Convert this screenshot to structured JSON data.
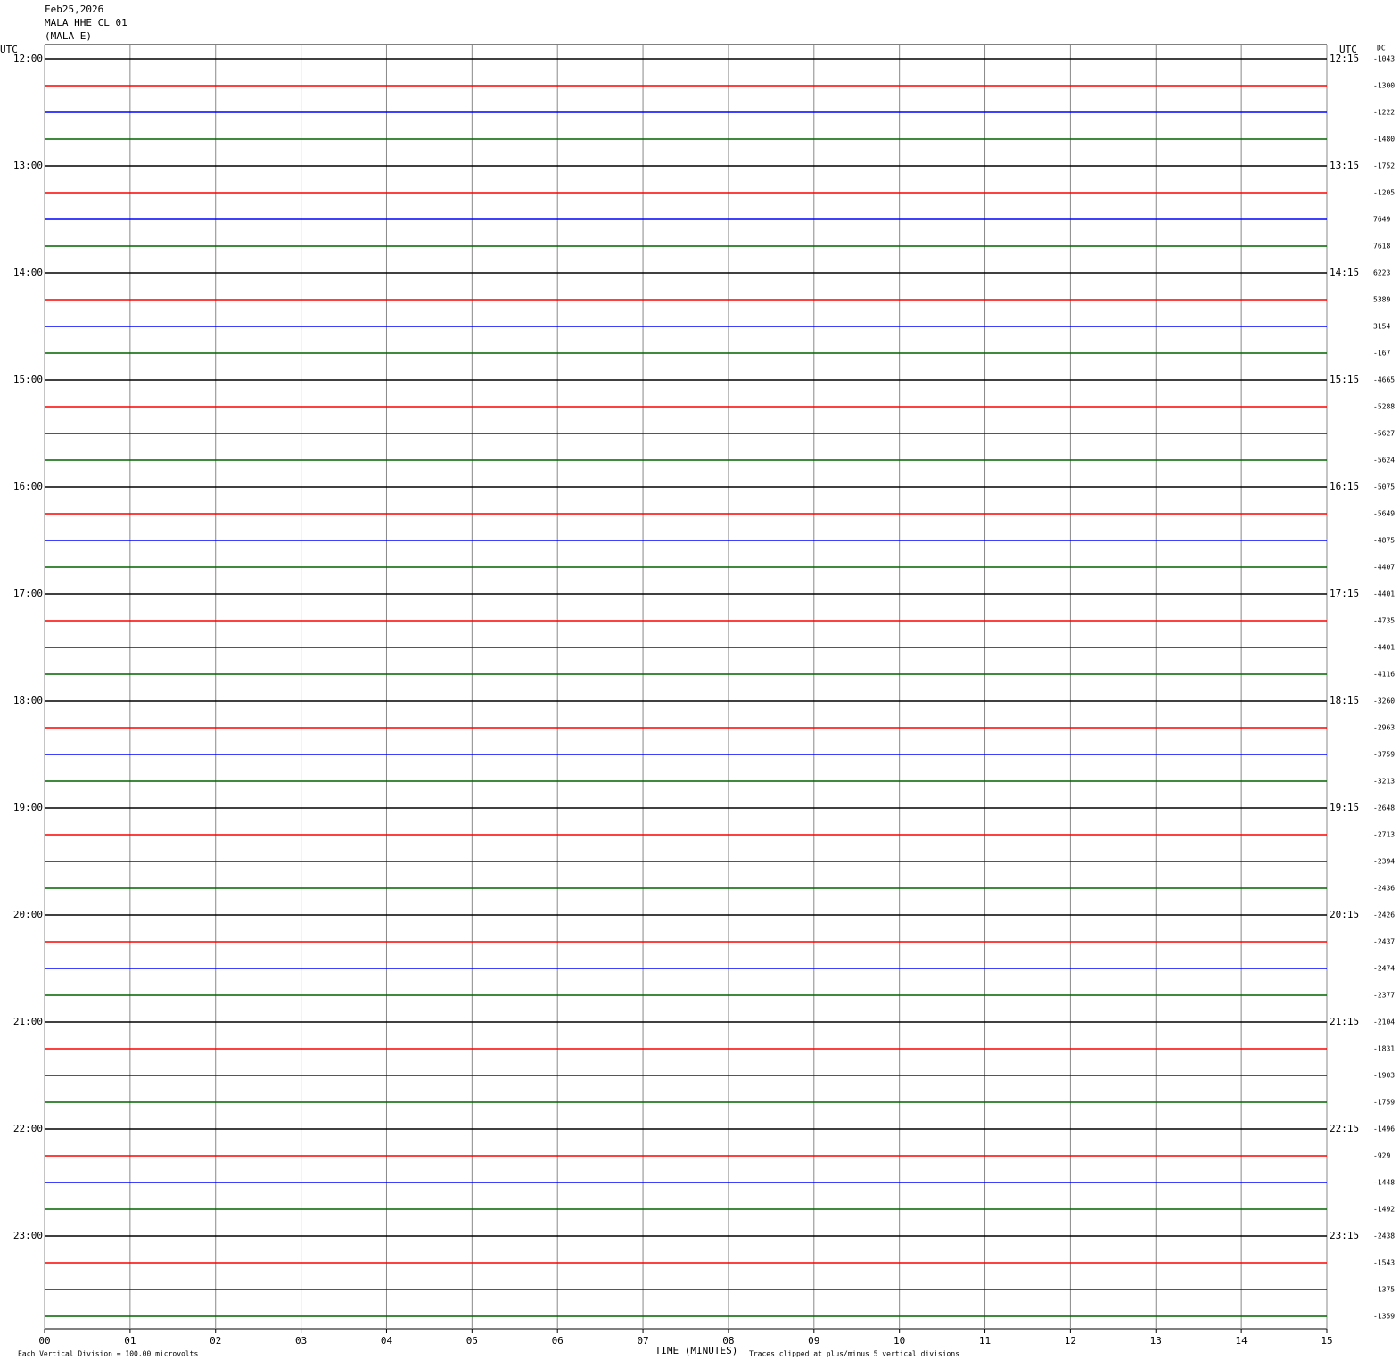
{
  "header": {
    "date": "Feb25,2026",
    "station": "MALA HHE CL 01",
    "location": "(MALA E)"
  },
  "chart_data": {
    "type": "helicorder",
    "left_axis_label": "UTC",
    "right_axis_label": "UTC",
    "dc_label": "DC",
    "left_times": [
      "12:00",
      "13:00",
      "14:00",
      "15:00",
      "16:00",
      "17:00",
      "18:00",
      "19:00",
      "20:00",
      "21:00",
      "22:00",
      "23:00"
    ],
    "right_times": [
      "12:15",
      "13:15",
      "14:15",
      "15:15",
      "16:15",
      "17:15",
      "18:15",
      "19:15",
      "20:15",
      "21:15",
      "22:15",
      "23:15"
    ],
    "dc_offsets": [
      -1043,
      -1300,
      -1222,
      -1480,
      -1752,
      -1205,
      7649,
      7618,
      6223,
      5389,
      3154,
      -167,
      -4665,
      -5288,
      -5627,
      -5624,
      -5075,
      -5649,
      -4875,
      -4407,
      -4401,
      -4735,
      -4401,
      -4116,
      -3260,
      -2963,
      -3759,
      -3213,
      -2648,
      -2713,
      -2394,
      -2436,
      -2426,
      -2437,
      -2474,
      -2377,
      -2104,
      -1831,
      -1903,
      -1759,
      -1496,
      -929,
      -1448,
      -1492,
      -2438,
      -1543,
      -1375,
      -1359
    ],
    "trace_colors": [
      "#000000",
      "#ff0000",
      "#0000ff",
      "#006400"
    ],
    "xlabel": "TIME (MINUTES)",
    "xlim": [
      0,
      15
    ],
    "xticks": [
      {
        "value": 0,
        "label": "00"
      },
      {
        "value": 1,
        "label": "01"
      },
      {
        "value": 2,
        "label": "02"
      },
      {
        "value": 3,
        "label": "03"
      },
      {
        "value": 4,
        "label": "04"
      },
      {
        "value": 5,
        "label": "05"
      },
      {
        "value": 6,
        "label": "06"
      },
      {
        "value": 7,
        "label": "07"
      },
      {
        "value": 8,
        "label": "08"
      },
      {
        "value": 9,
        "label": "09"
      },
      {
        "value": 10,
        "label": "10"
      },
      {
        "value": 11,
        "label": "11"
      },
      {
        "value": 12,
        "label": "12"
      },
      {
        "value": 13,
        "label": "13"
      },
      {
        "value": 14,
        "label": "14"
      },
      {
        "value": 15,
        "label": "15"
      }
    ],
    "grid": true,
    "footer_left": "Each Vertical Division =  100.00 microvolts",
    "footer_right": "Traces clipped at plus/minus 5 vertical divisions"
  }
}
